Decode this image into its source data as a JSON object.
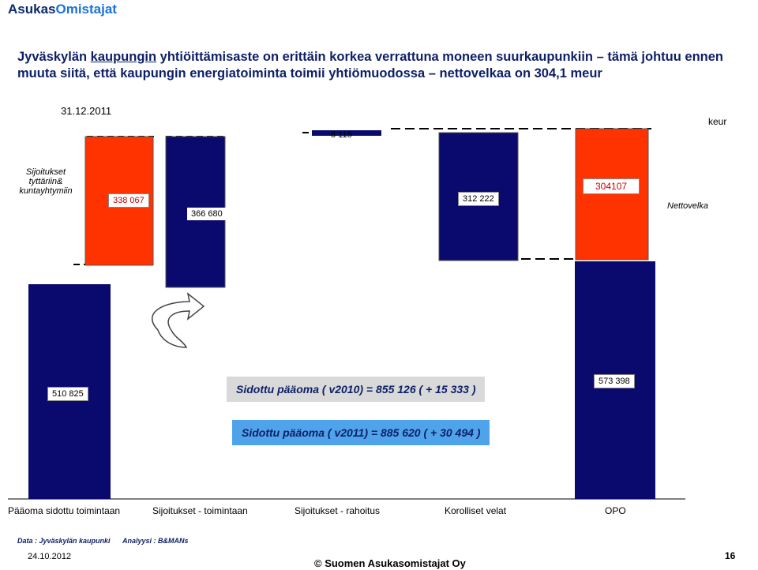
{
  "brand": {
    "part1": "Asukas",
    "part2": "Omistajat"
  },
  "headline": {
    "line1_pre": "Jyväskylän ",
    "line1_u": "kaupungin",
    "line1_post": " yhtiöittämisaste on erittäin korkea verrattuna moneen suurkaupunkiin – tämä johtuu ennen",
    "line2": "muuta siitä, että kaupungin energiatoiminta toimii yhtiömuodossa – nettovelkaa on 304,1  meur"
  },
  "chart_data": {
    "type": "bar",
    "title": "31.12.2011",
    "unit": "keur",
    "categories": [
      "Pääoma sidottu toimintaan",
      "Sijoitukset - toimintaan",
      "Sijoitukset - rahoitus",
      "Korolliset velat",
      "OPO"
    ],
    "bars": [
      {
        "name": "Pääoma sidottu toimintaan",
        "label": "510 825",
        "color": "#0a0a6e"
      },
      {
        "name": "Sijoitukset tyttäriin& kuntayhtymiin",
        "label": "338 067",
        "color": "#ff3300"
      },
      {
        "name": "Sijoitukset - toimintaan",
        "label": "366 680",
        "color": "#0a0a6e"
      },
      {
        "name": "Sijoitukset - rahoitus",
        "label": "8 115",
        "color": "#0a0a6e"
      },
      {
        "name": "Korolliset velat",
        "label": "312 222",
        "color": "#0a0a6e"
      },
      {
        "name": "Nettovelka",
        "label": "304107",
        "color": "#ff3300"
      },
      {
        "name": "OPO",
        "label": "573 398",
        "color": "#0a0a6e"
      }
    ],
    "side_label": "Sijoitukset tyttäriin& kuntayhtymiin",
    "right_label": "Nettovelka",
    "notes": [
      "Sidottu pääoma  ( v2010) = 855 126  ( + 15 333 )",
      "Sidottu pääoma  ( v2011) = 885 620 ( + 30 494 )"
    ]
  },
  "footer": {
    "source": "Data : Jyväskylän kaupunki",
    "analysis": "Analyysi : B&MANs",
    "date": "24.10.2012",
    "copyright": "© Suomen Asukasomistajat Oy",
    "page": "16"
  }
}
